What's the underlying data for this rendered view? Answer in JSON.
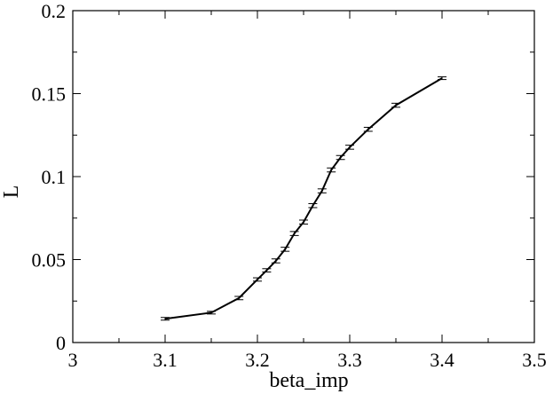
{
  "chart_data": {
    "type": "line",
    "title": "",
    "xlabel": "beta_imp",
    "ylabel": "L",
    "xlim": [
      3.0,
      3.5
    ],
    "ylim": [
      0.0,
      0.2
    ],
    "grid": false,
    "legend": "none",
    "x_ticks": [
      3.0,
      3.1,
      3.2,
      3.3,
      3.4,
      3.5
    ],
    "x_tick_labels": [
      "3",
      "3.1",
      "3.2",
      "3.3",
      "3.4",
      "3.5"
    ],
    "y_ticks": [
      0.0,
      0.05,
      0.1,
      0.15,
      0.2
    ],
    "y_tick_labels": [
      "0",
      "0.05",
      "0.1",
      "0.15",
      "0.2"
    ],
    "line_color": "#000000",
    "series": [
      {
        "x": [
          3.1,
          3.15,
          3.18,
          3.2,
          3.21,
          3.22,
          3.23,
          3.24,
          3.25,
          3.26,
          3.27,
          3.28,
          3.29,
          3.3,
          3.32,
          3.35,
          3.4
        ],
        "y": [
          0.0143,
          0.018,
          0.0268,
          0.038,
          0.0435,
          0.0492,
          0.0562,
          0.0657,
          0.0726,
          0.0825,
          0.0914,
          0.104,
          0.1115,
          0.1177,
          0.1285,
          0.143,
          0.1593
        ],
        "err": [
          0.0008,
          0.0008,
          0.001,
          0.001,
          0.001,
          0.0012,
          0.0012,
          0.0012,
          0.0012,
          0.0012,
          0.0012,
          0.0012,
          0.0012,
          0.0012,
          0.0012,
          0.0012,
          0.0008
        ]
      }
    ]
  }
}
